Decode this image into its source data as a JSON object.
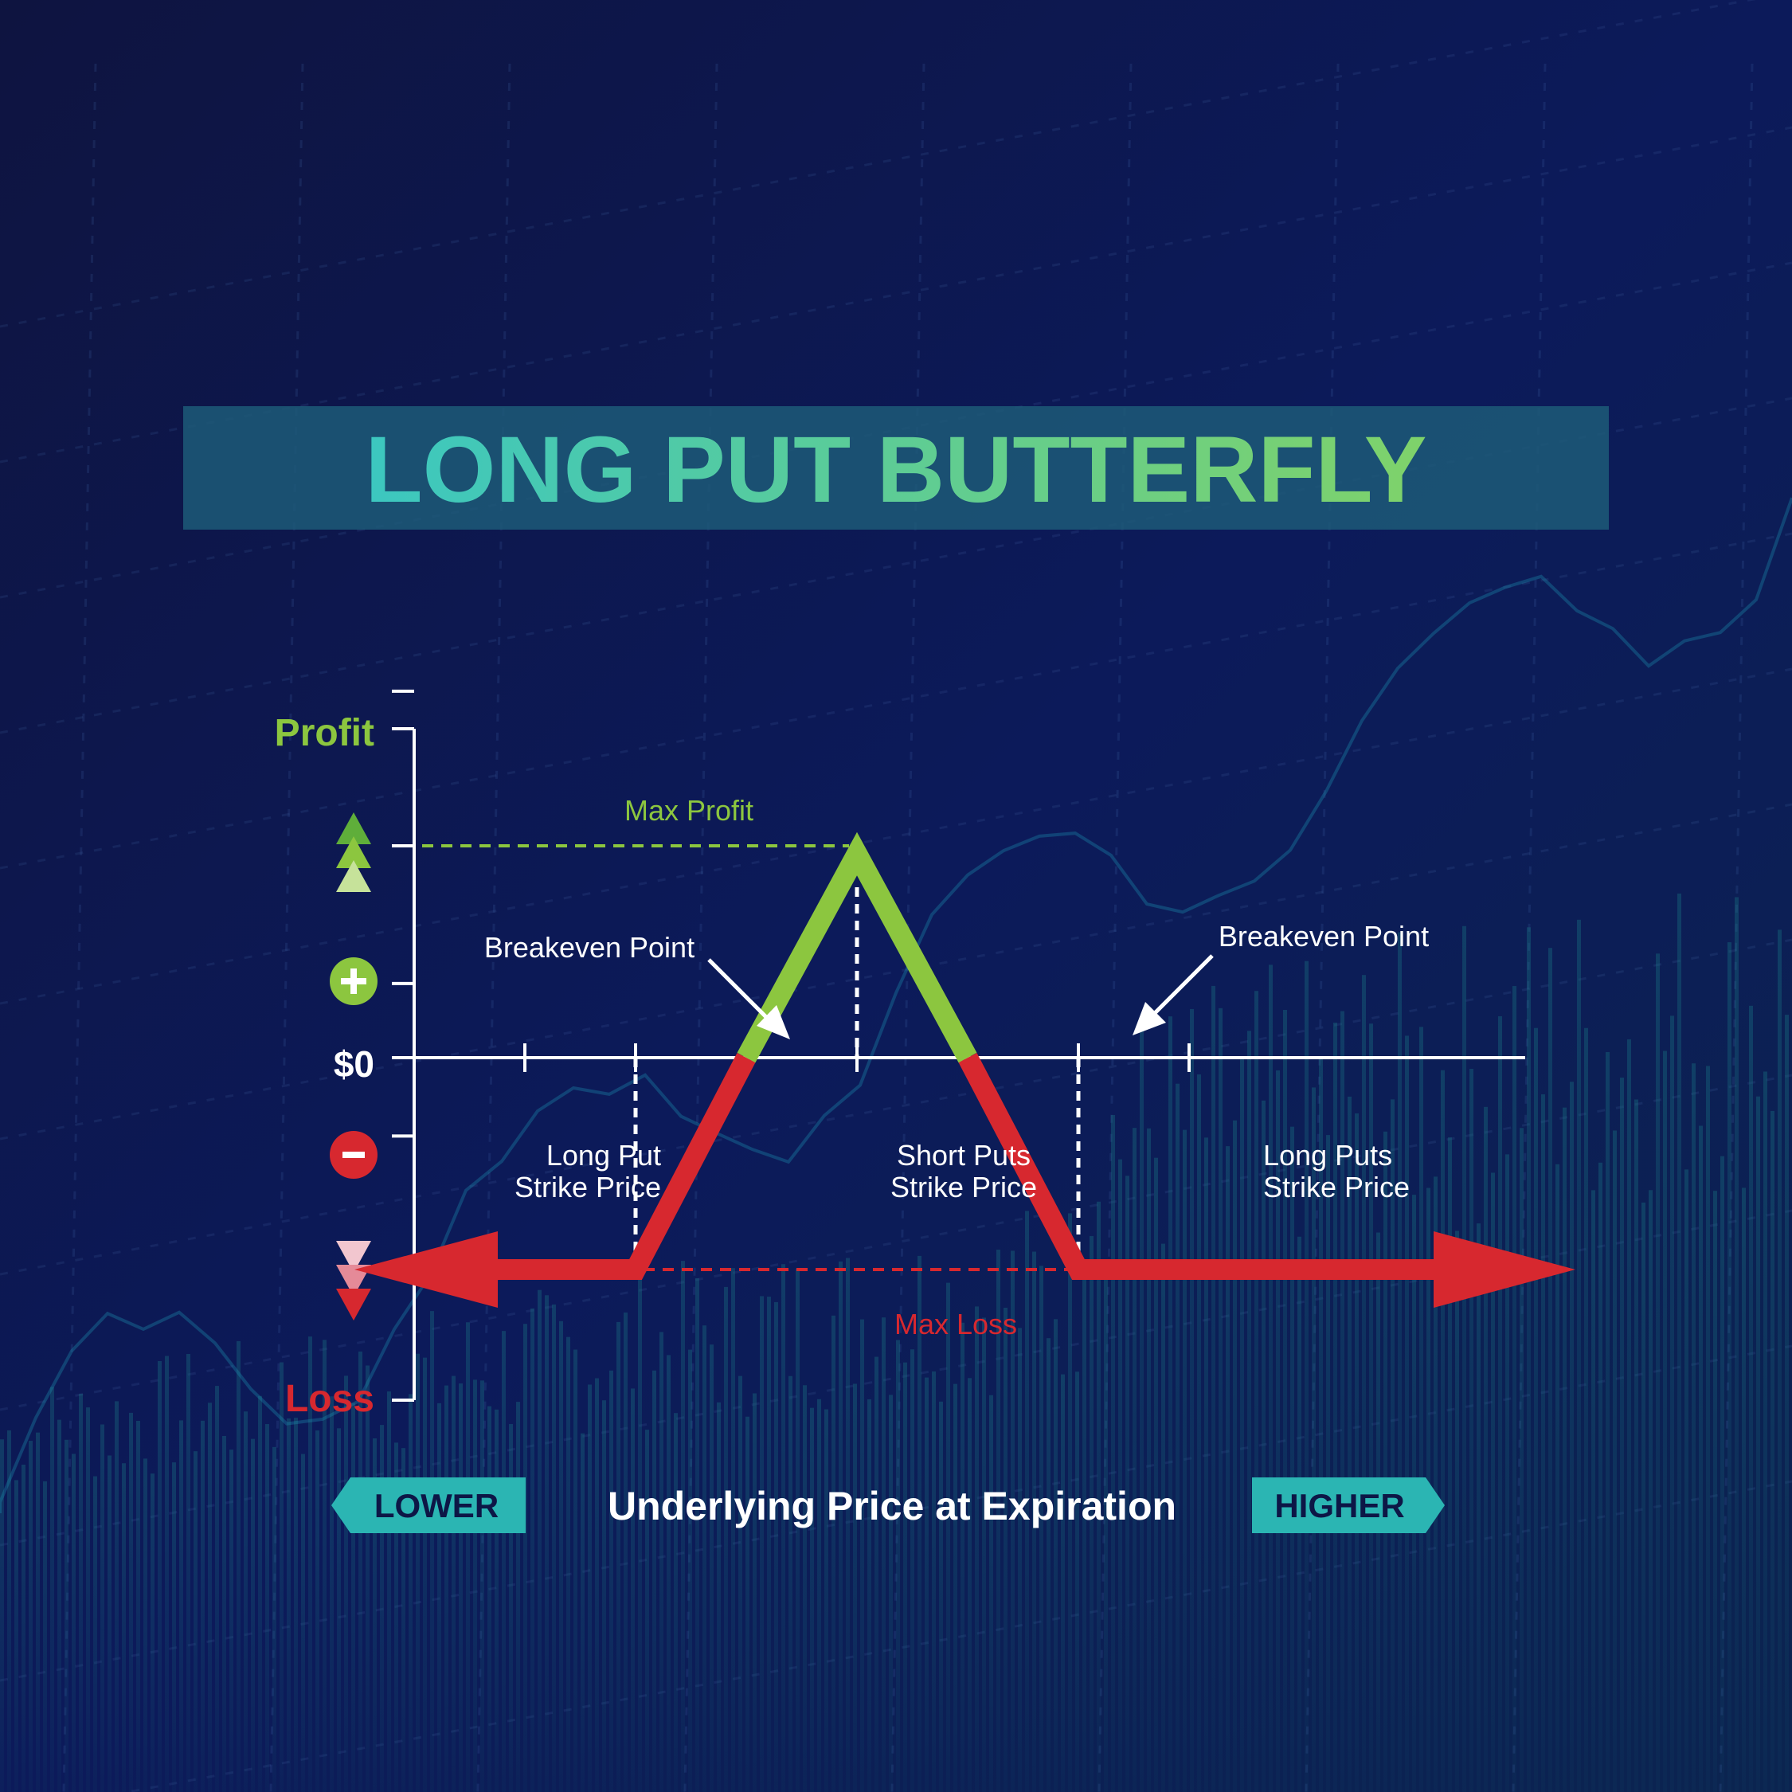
{
  "title": "LONG PUT BUTTERFLY",
  "colors": {
    "background": "#0d1646",
    "title_band": "#1d5a78",
    "title_start": "#3cc7c0",
    "title_end": "#7fd26a",
    "profit": "#8cc63f",
    "loss": "#d7282f",
    "axis": "#ffffff",
    "badge": "#2bb5b3"
  },
  "icons": {
    "profit_levels": "triple-up-triangle-icon",
    "plus": "plus-circle-icon",
    "minus": "minus-circle-icon",
    "loss_levels": "triple-down-triangle-icon",
    "lower": "left-arrow-badge",
    "higher": "right-arrow-badge"
  },
  "axis": {
    "profit_label": "Profit",
    "loss_label": "Loss",
    "zero_label": "$0",
    "xlabel": "Underlying Price at Expiration",
    "lower_label": "LOWER",
    "higher_label": "HIGHER"
  },
  "chart_data": {
    "type": "line",
    "title": "LONG PUT BUTTERFLY",
    "xlabel": "Underlying Price at Expiration",
    "ylabel": "",
    "xlim": [
      0,
      10
    ],
    "ylim": [
      -2,
      2
    ],
    "grid": false,
    "x_ticks": [
      1,
      2,
      4,
      6,
      7
    ],
    "y_ticks": [
      -1,
      0,
      1,
      2
    ],
    "payoff": {
      "x": [
        0,
        2,
        4,
        6,
        10
      ],
      "y": [
        -1,
        -1,
        1,
        -1,
        -1
      ]
    },
    "breakeven_x": [
      3,
      5
    ],
    "max_profit": 1,
    "max_loss": -1,
    "annotations": {
      "max_profit": "Max Profit",
      "max_loss": "Max Loss",
      "breakeven_left": "Breakeven Point",
      "breakeven_right": "Breakeven Point",
      "strike_long_low": [
        "Long Put",
        "Strike Price"
      ],
      "strike_short": [
        "Short Puts",
        "Strike Price"
      ],
      "strike_long_high": [
        "Long Puts",
        "Strike Price"
      ]
    }
  }
}
